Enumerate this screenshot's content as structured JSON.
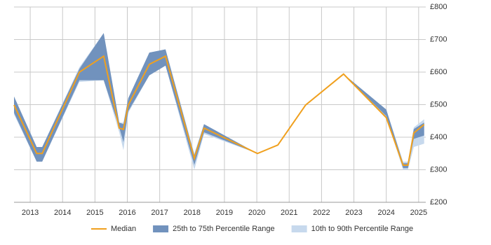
{
  "chart_data": {
    "type": "line",
    "x": [
      2012.5,
      2013.2,
      2013.37,
      2014.52,
      2015.27,
      2015.75,
      2015.88,
      2016.03,
      2016.68,
      2017.18,
      2018.07,
      2018.37,
      2020.02,
      2020.65,
      2021.51,
      2022.68,
      2024.0,
      2024.52,
      2024.67,
      2024.85,
      2025.17
    ],
    "series": [
      {
        "name": "Median",
        "color": "#f0a01e",
        "values": [
          499,
          350,
          350,
          600,
          649,
          428,
          424,
          499,
          624,
          649,
          335,
          428,
          350,
          376,
          499,
          594,
          460,
          314,
          314,
          413,
          439
        ]
      },
      {
        "name": "25th to 75th Percentile Range",
        "color": "#7192bd",
        "low": [
          475,
          325,
          325,
          575,
          575,
          430,
          385,
          480,
          590,
          620,
          315,
          415,
          350,
          null,
          null,
          594,
          465,
          305,
          305,
          395,
          405
        ],
        "high": [
          525,
          370,
          370,
          610,
          720,
          445,
          440,
          520,
          660,
          670,
          345,
          440,
          350,
          null,
          null,
          594,
          485,
          320,
          320,
          425,
          445
        ]
      },
      {
        "name": "10th to 90th Percentile Range",
        "color": "#c7d9ed",
        "low": [
          470,
          325,
          325,
          570,
          575,
          415,
          360,
          475,
          590,
          620,
          300,
          410,
          350,
          null,
          null,
          594,
          460,
          300,
          300,
          370,
          380
        ],
        "high": [
          525,
          370,
          370,
          615,
          720,
          445,
          445,
          520,
          660,
          670,
          350,
          440,
          350,
          null,
          null,
          594,
          485,
          325,
          325,
          430,
          455
        ]
      }
    ],
    "xlim": [
      2012.5,
      2025.22
    ],
    "xticks": [
      2013,
      2014,
      2015,
      2016,
      2017,
      2018,
      2019,
      2020,
      2021,
      2022,
      2023,
      2024,
      2025
    ],
    "ylim": [
      200,
      800
    ],
    "yticks": [
      {
        "value": 200,
        "label": "£200"
      },
      {
        "value": 300,
        "label": "£300"
      },
      {
        "value": 400,
        "label": "£400"
      },
      {
        "value": 500,
        "label": "£500"
      },
      {
        "value": 600,
        "label": "£600"
      },
      {
        "value": 700,
        "label": "£700"
      },
      {
        "value": 800,
        "label": "£800"
      }
    ],
    "grid": true,
    "legend": "bottom"
  }
}
